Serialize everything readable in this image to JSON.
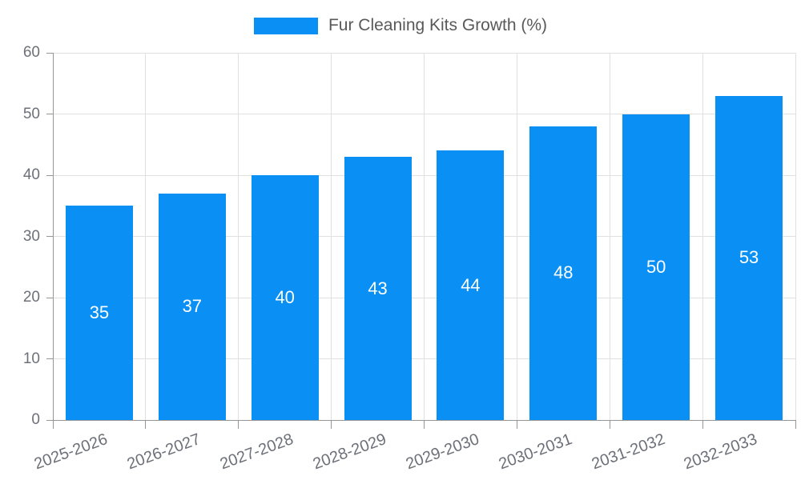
{
  "chart_data": {
    "type": "bar",
    "title": "Fur Cleaning Kits Growth (%)",
    "categories": [
      "2025-2026",
      "2026-2027",
      "2027-2028",
      "2028-2029",
      "2029-2030",
      "2030-2031",
      "2031-2032",
      "2032-2033"
    ],
    "values": [
      35,
      37,
      40,
      43,
      44,
      48,
      50,
      53
    ],
    "xlabel": "",
    "ylabel": "",
    "ylim": [
      0,
      60
    ],
    "yticks": [
      0,
      10,
      20,
      30,
      40,
      50,
      60
    ],
    "grid": true,
    "legend_position": "top-center",
    "value_labels_inside_bars": true,
    "colors": {
      "bar": "#0A90F5",
      "bar_label": "#FFFFFF",
      "grid": "#E0E0E0",
      "axis": "#969696",
      "tick_label": "#6E7079",
      "legend_text": "#595959",
      "background": "#FFFFFF"
    }
  }
}
